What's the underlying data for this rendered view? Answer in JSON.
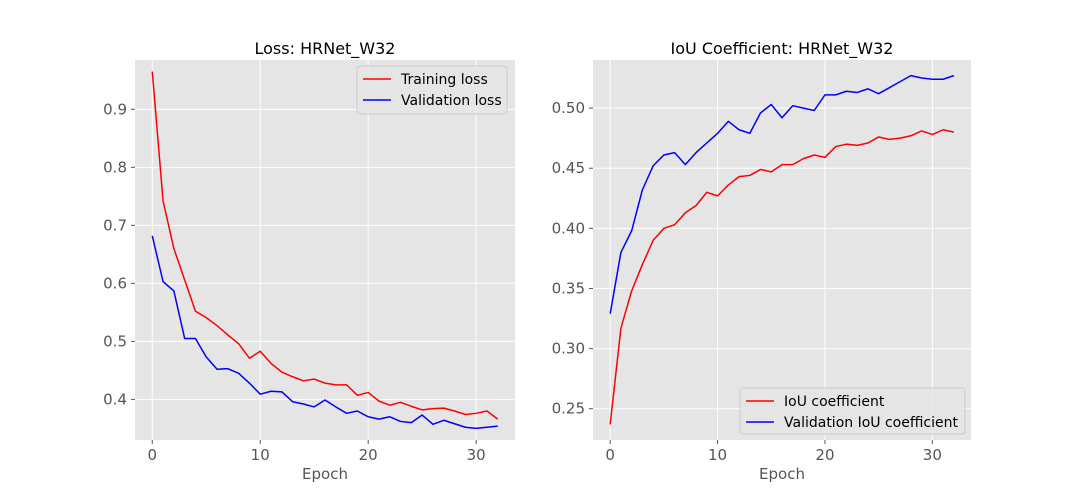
{
  "chart_data": [
    {
      "type": "line",
      "title": "Loss: HRNet_W32",
      "xlabel": "Epoch",
      "ylabel": "",
      "xlim": [
        -1.6,
        33.6
      ],
      "ylim": [
        0.33,
        0.985
      ],
      "xticks": [
        0,
        10,
        20,
        30
      ],
      "yticks": [
        0.4,
        0.5,
        0.6,
        0.7,
        0.8,
        0.9
      ],
      "ytick_decimals": 1,
      "grid": true,
      "legend_position": "upper right",
      "x": [
        0,
        1,
        2,
        3,
        4,
        5,
        6,
        7,
        8,
        9,
        10,
        11,
        12,
        13,
        14,
        15,
        16,
        17,
        18,
        19,
        20,
        21,
        22,
        23,
        24,
        25,
        26,
        27,
        28,
        29,
        30,
        31,
        32
      ],
      "series": [
        {
          "name": "Training loss",
          "color": "#ff0000",
          "values": [
            0.965,
            0.742,
            0.66,
            0.606,
            0.552,
            0.541,
            0.527,
            0.511,
            0.496,
            0.471,
            0.483,
            0.462,
            0.447,
            0.439,
            0.432,
            0.435,
            0.428,
            0.425,
            0.425,
            0.407,
            0.412,
            0.397,
            0.39,
            0.395,
            0.388,
            0.382,
            0.384,
            0.385,
            0.38,
            0.374,
            0.376,
            0.38,
            0.366
          ]
        },
        {
          "name": "Validation loss",
          "color": "#0000ff",
          "values": [
            0.682,
            0.603,
            0.587,
            0.505,
            0.505,
            0.473,
            0.452,
            0.453,
            0.445,
            0.428,
            0.409,
            0.414,
            0.413,
            0.396,
            0.392,
            0.387,
            0.399,
            0.387,
            0.376,
            0.38,
            0.37,
            0.366,
            0.37,
            0.362,
            0.36,
            0.373,
            0.357,
            0.364,
            0.358,
            0.352,
            0.35,
            0.352,
            0.354
          ]
        }
      ]
    },
    {
      "type": "line",
      "title": "IoU Coefficient: HRNet_W32",
      "xlabel": "Epoch",
      "ylabel": "",
      "xlim": [
        -1.6,
        33.6
      ],
      "ylim": [
        0.224,
        0.54
      ],
      "xticks": [
        0,
        10,
        20,
        30
      ],
      "yticks": [
        0.25,
        0.3,
        0.35,
        0.4,
        0.45,
        0.5
      ],
      "ytick_decimals": 2,
      "grid": true,
      "legend_position": "lower right",
      "x": [
        0,
        1,
        2,
        3,
        4,
        5,
        6,
        7,
        8,
        9,
        10,
        11,
        12,
        13,
        14,
        15,
        16,
        17,
        18,
        19,
        20,
        21,
        22,
        23,
        24,
        25,
        26,
        27,
        28,
        29,
        30,
        31,
        32
      ],
      "series": [
        {
          "name": "IoU coefficient",
          "color": "#ff0000",
          "values": [
            0.237,
            0.317,
            0.348,
            0.37,
            0.39,
            0.4,
            0.403,
            0.413,
            0.419,
            0.43,
            0.427,
            0.436,
            0.443,
            0.444,
            0.449,
            0.447,
            0.453,
            0.453,
            0.458,
            0.461,
            0.459,
            0.468,
            0.47,
            0.469,
            0.471,
            0.476,
            0.474,
            0.475,
            0.477,
            0.481,
            0.478,
            0.482,
            0.48
          ]
        },
        {
          "name": "Validation IoU coefficient",
          "color": "#0000ff",
          "values": [
            0.329,
            0.38,
            0.398,
            0.432,
            0.452,
            0.461,
            0.463,
            0.453,
            0.463,
            0.471,
            0.479,
            0.489,
            0.482,
            0.479,
            0.496,
            0.503,
            0.492,
            0.502,
            0.5,
            0.498,
            0.511,
            0.511,
            0.514,
            0.513,
            0.516,
            0.512,
            0.517,
            0.522,
            0.527,
            0.525,
            0.524,
            0.524,
            0.527
          ]
        }
      ]
    }
  ]
}
